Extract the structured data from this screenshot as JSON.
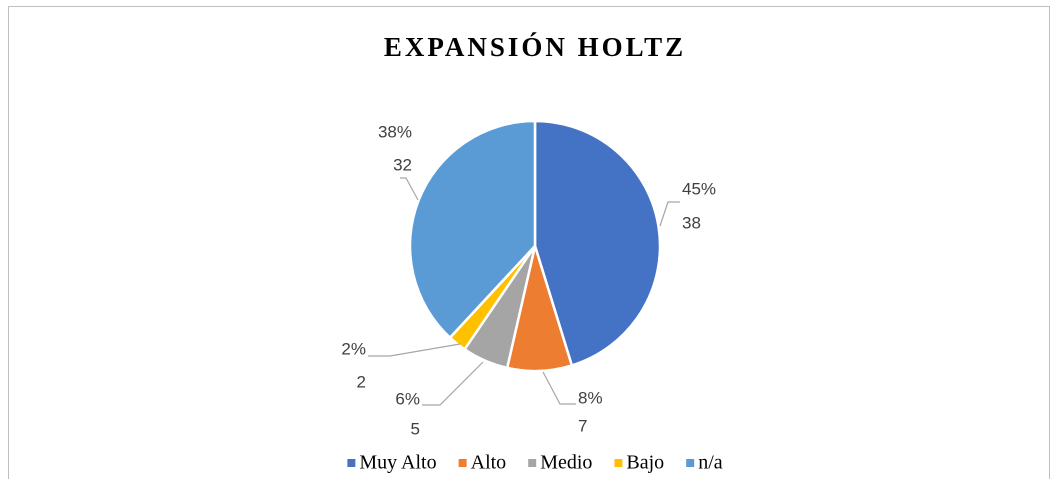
{
  "chart_data": {
    "type": "pie",
    "title": "EXPANSIÓN HOLTZ",
    "categories": [
      "Muy Alto",
      "Alto",
      "Medio",
      "Bajo",
      "n/a"
    ],
    "values": [
      38,
      7,
      5,
      2,
      32
    ],
    "percent_labels": [
      "45%",
      "8%",
      "6%",
      "2%",
      "38%"
    ],
    "colors": [
      "#4472c4",
      "#ed7d31",
      "#a5a5a5",
      "#ffc000",
      "#5b9bd5"
    ],
    "legend": "bottom"
  }
}
